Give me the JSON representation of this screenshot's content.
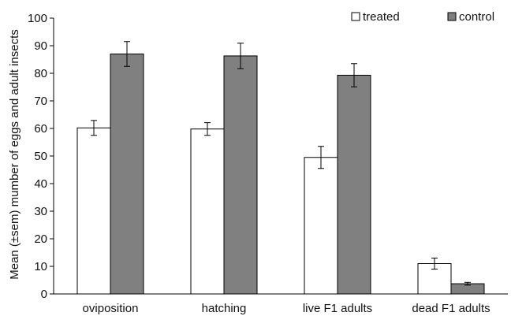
{
  "chart_data": {
    "type": "bar",
    "title": "",
    "xlabel": "",
    "ylabel": "Mean (±sem) mumber of eggs and adult insects",
    "ylim": [
      0,
      100
    ],
    "yticks": [
      0,
      10,
      20,
      30,
      40,
      50,
      60,
      70,
      80,
      90,
      100
    ],
    "categories": [
      "oviposition",
      "hatching",
      "live F1 adults",
      "dead F1 adults"
    ],
    "series": [
      {
        "name": "treated",
        "values": [
          60.2,
          59.8,
          49.5,
          11.0
        ],
        "errors": [
          2.7,
          2.3,
          4.0,
          2.0
        ],
        "color": "#ffffff"
      },
      {
        "name": "control",
        "values": [
          87.0,
          86.3,
          79.3,
          3.7
        ],
        "errors": [
          4.5,
          4.6,
          4.2,
          0.5
        ],
        "color": "#808080"
      }
    ],
    "legend": "top-right",
    "grid": false
  }
}
